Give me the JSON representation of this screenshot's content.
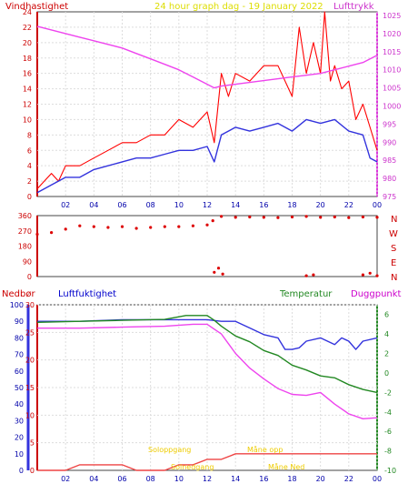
{
  "chart_data": [
    {
      "type": "line",
      "title": "24 hour graph dag - 19 January 2022",
      "y_left_label": "Vindhastighet",
      "y_right_label": "Lufttrykk",
      "x_ticks": [
        "02",
        "04",
        "06",
        "08",
        "10",
        "12",
        "14",
        "16",
        "18",
        "20",
        "22",
        "00"
      ],
      "y_left_ticks": [
        0,
        2,
        4,
        6,
        8,
        10,
        12,
        14,
        16,
        18,
        20,
        22,
        24
      ],
      "y_right_ticks": [
        975,
        980,
        985,
        990,
        995,
        1000,
        1005,
        1010,
        1015,
        1020,
        1025
      ],
      "y_left_range": [
        0,
        24
      ],
      "y_right_range": [
        975,
        1026
      ],
      "colors": {
        "gust": "#ff0000",
        "wind": "#3333dd",
        "pressure": "#ee44ee"
      },
      "series": [
        {
          "name": "",
          "color": "gust",
          "axis": "left",
          "x": [
            0,
            1,
            1.5,
            2,
            3,
            4,
            5,
            6,
            7,
            8,
            9,
            10,
            11,
            12,
            12.5,
            13,
            13.5,
            14,
            15,
            16,
            17,
            18,
            18.5,
            19,
            19.5,
            20,
            20.3,
            20.7,
            21,
            21.5,
            22,
            22.5,
            23,
            23.5,
            24
          ],
          "y": [
            1,
            3,
            2,
            4,
            4,
            5,
            6,
            7,
            7,
            8,
            8,
            10,
            9,
            11,
            7,
            16,
            13,
            16,
            15,
            17,
            17,
            13,
            22,
            16,
            20,
            16,
            24,
            15,
            17,
            14,
            15,
            10,
            12,
            9,
            6
          ]
        },
        {
          "name": "",
          "color": "wind",
          "axis": "left",
          "x": [
            0,
            1,
            2,
            3,
            4,
            5,
            6,
            7,
            8,
            9,
            10,
            11,
            12,
            12.5,
            13,
            14,
            15,
            16,
            17,
            18,
            19,
            20,
            21,
            22,
            23,
            23.5,
            24
          ],
          "y": [
            0.5,
            1.5,
            2.5,
            2.5,
            3.5,
            4,
            4.5,
            5,
            5,
            5.5,
            6,
            6,
            6.5,
            4.5,
            8,
            9,
            8.5,
            9,
            9.5,
            8.5,
            10,
            9.5,
            10,
            8.5,
            8,
            5,
            4.5
          ]
        },
        {
          "name": "",
          "color": "pressure",
          "axis": "right",
          "x": [
            0,
            1,
            2,
            3,
            4,
            5,
            6,
            7,
            8,
            9,
            10,
            11,
            12,
            12.5,
            13,
            14,
            15,
            16,
            17,
            18,
            19,
            20,
            21,
            22,
            23,
            24
          ],
          "y": [
            1022,
            1021,
            1020,
            1019,
            1018,
            1017,
            1016,
            1014.5,
            1013,
            1011.5,
            1010,
            1008,
            1006,
            1005,
            1005.5,
            1006,
            1006.5,
            1007,
            1007.5,
            1008,
            1008.5,
            1009,
            1010,
            1011,
            1012,
            1014
          ]
        }
      ]
    },
    {
      "type": "scatter",
      "y_ticks": [
        0,
        90,
        180,
        270,
        360
      ],
      "y_range": [
        0,
        360
      ],
      "compass_labels": [
        "N",
        "W",
        "S",
        "E",
        "N"
      ],
      "x_ticks": [],
      "color": "#dd0000",
      "segments": [
        {
          "x": [
            0,
            1,
            2,
            3,
            4,
            5,
            6,
            7,
            8,
            9,
            10,
            11,
            12,
            12.4
          ],
          "y": [
            250,
            260,
            280,
            300,
            295,
            290,
            295,
            285,
            290,
            295,
            295,
            300,
            305,
            330
          ]
        },
        {
          "x": [
            13,
            14,
            15,
            16,
            17,
            18,
            19,
            20,
            21,
            22,
            23,
            24
          ],
          "y": [
            355,
            350,
            352,
            350,
            348,
            352,
            355,
            350,
            352,
            348,
            352,
            350
          ]
        },
        {
          "x": [
            12.5,
            12.8,
            13.1
          ],
          "y": [
            25,
            50,
            15
          ]
        },
        {
          "x": [
            19,
            19.5
          ],
          "y": [
            5,
            10
          ]
        },
        {
          "x": [
            23,
            23.5,
            24
          ],
          "y": [
            10,
            20,
            5
          ]
        }
      ]
    },
    {
      "type": "line",
      "y_far_left_label": "Nedbør",
      "y_left_label": "Luftfuktighet",
      "y_right_label_1": "Temperatur",
      "y_right_label_2": "Duggpunkt",
      "x_ticks": [
        "02",
        "04",
        "06",
        "08",
        "10",
        "12",
        "14",
        "16",
        "18",
        "20",
        "22",
        "00"
      ],
      "y_far_left_ticks": [
        0,
        10,
        20,
        30,
        40,
        50,
        60,
        70,
        80,
        90,
        100
      ],
      "y_far_left_range": [
        0,
        100
      ],
      "y_left_ticks": [
        0,
        5,
        10,
        15,
        20,
        25,
        30
      ],
      "y_left_range": [
        0,
        30
      ],
      "y_right_ticks": [
        -10,
        -8,
        -6,
        -4,
        -2,
        0,
        2,
        4,
        6
      ],
      "y_right_range": [
        -10,
        7
      ],
      "annotations": [
        "Soloppgang",
        "Solnedgang",
        "Måne opp",
        "Måne Ned"
      ],
      "colors": {
        "humidity": "#3333dd",
        "temperature": "#228822",
        "dewpoint": "#ee44ee",
        "rain": "#ee4444"
      },
      "series": [
        {
          "name": "",
          "color": "humidity",
          "axis": "far_left",
          "x": [
            0,
            3,
            6,
            9,
            11,
            12,
            13,
            14,
            15,
            16,
            17,
            17.5,
            18,
            18.5,
            19,
            20,
            21,
            21.5,
            22,
            22.5,
            23,
            24
          ],
          "y": [
            90,
            90,
            91,
            91,
            91,
            91,
            90,
            90,
            86,
            82,
            80,
            73,
            73,
            74,
            78,
            80,
            76,
            80,
            78,
            73,
            78,
            80
          ]
        },
        {
          "name": "",
          "color": "temperature",
          "axis": "right",
          "x": [
            0,
            3,
            6,
            9,
            10.5,
            12,
            12.5,
            13,
            14,
            15,
            16,
            17,
            18,
            19,
            20,
            21,
            22,
            23,
            24
          ],
          "y": [
            5.2,
            5.3,
            5.4,
            5.5,
            5.9,
            5.9,
            5.4,
            4.8,
            3.8,
            3.2,
            2.3,
            1.8,
            0.8,
            0.3,
            -0.3,
            -0.5,
            -1.2,
            -1.7,
            -2.0
          ]
        },
        {
          "name": "",
          "color": "dewpoint",
          "axis": "right",
          "x": [
            0,
            3,
            6,
            9,
            11,
            12,
            12.5,
            13,
            14,
            15,
            16,
            17,
            18,
            19,
            20,
            21,
            22,
            23,
            24
          ],
          "y": [
            4.6,
            4.6,
            4.7,
            4.8,
            5.0,
            5.0,
            4.5,
            4.0,
            2.0,
            0.5,
            -0.6,
            -1.6,
            -2.2,
            -2.3,
            -2.0,
            -3.2,
            -4.2,
            -4.7,
            -4.6
          ]
        },
        {
          "name": "",
          "color": "rain",
          "axis": "left",
          "x": [
            0,
            2,
            3,
            6,
            7,
            9,
            10,
            11,
            12,
            13,
            14,
            18,
            19,
            24
          ],
          "y": [
            0,
            0,
            1,
            1,
            0,
            0,
            1,
            1,
            2,
            2,
            3,
            3,
            3,
            3
          ]
        }
      ]
    }
  ]
}
